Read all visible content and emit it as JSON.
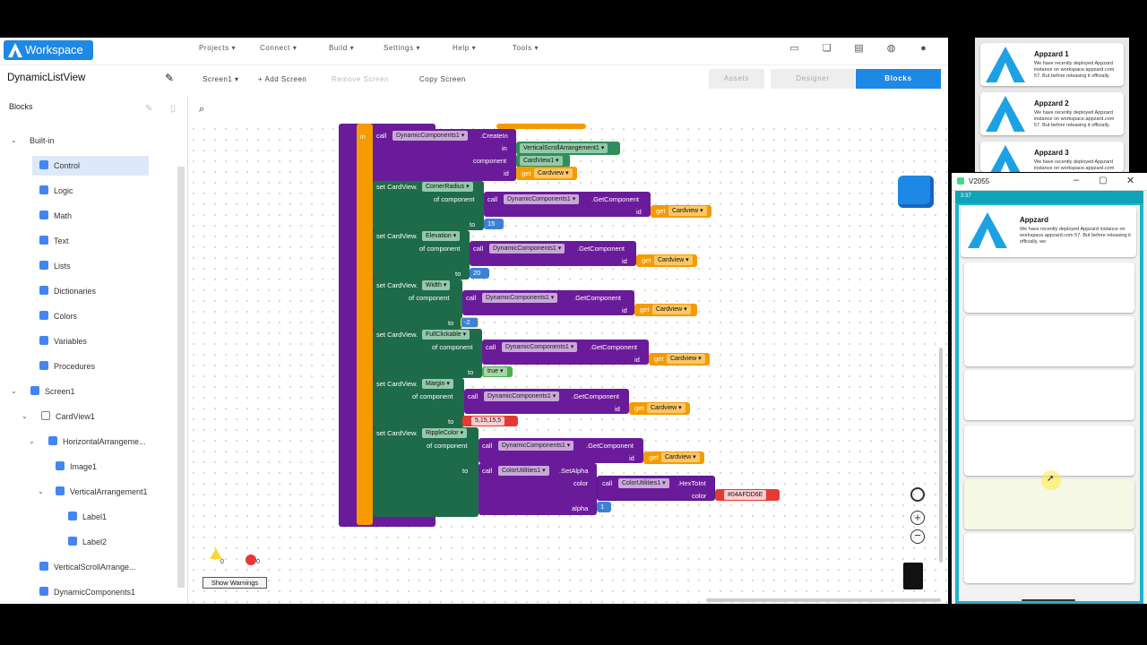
{
  "app": {
    "logo_text": "Workspace"
  },
  "menu": [
    "Projects ▾",
    "Connect ▾",
    "Build ▾",
    "Settings ▾",
    "Help ▾",
    "Tools ▾"
  ],
  "project": {
    "name": "DynamicListView"
  },
  "toolbar": {
    "screen_select": "Screen1 ▾",
    "add_screen": "+ Add Screen",
    "remove_screen": "Remove Screen",
    "copy_screen": "Copy Screen"
  },
  "tabs": {
    "assets": "Assets",
    "designer": "Designer",
    "blocks": "Blocks"
  },
  "blocks_panel": {
    "header": "Blocks"
  },
  "tree": {
    "builtin": "Built-in",
    "control": "Control",
    "logic": "Logic",
    "math": "Math",
    "text": "Text",
    "lists": "Lists",
    "dictionaries": "Dictionaries",
    "colors": "Colors",
    "variables": "Variables",
    "procedures": "Procedures",
    "screen1": "Screen1",
    "cardview1": "CardView1",
    "horizontal": "HorizontalArrangeme...",
    "image1": "Image1",
    "vertical1": "VerticalArrangement1",
    "label1": "Label1",
    "label2": "Label2",
    "vscroll": "VerticalScrollArrange...",
    "dynamic": "DynamicComponents1"
  },
  "warnings": {
    "warn_count": "0",
    "error_count": "0",
    "button": "Show Warnings"
  },
  "blocks": {
    "in": "in",
    "call": "call",
    "create_comp": "DynamicComponents1 ▾",
    "create": ".CreateIn",
    "in_label": "in",
    "vsa": "VerticalScrollArrangement1 ▾",
    "component": "component",
    "cardview1": "CardView1 ▾",
    "id": "id",
    "get": "get",
    "cardview": "Cardview ▾",
    "set_cardview": "set CardView.",
    "of_component": "of component",
    "to": "to",
    "getcomp": ".GetComponent",
    "corner": "CornerRadius ▾",
    "corner_val": "15",
    "elevation": "Elevation ▾",
    "elevation_val": "20",
    "width": "Width ▾",
    "width_val": "-2",
    "fullclick": "FullClickable ▾",
    "true_val": "true ▾",
    "margin": "Margin ▾",
    "margin_val": "5,15,15,5",
    "ripple": "RippleColor ▾",
    "colorutil": "ColorUtilities1 ▾",
    "setalpha": ".SetAlpha",
    "color": "color",
    "hextoint": ".HexToInt",
    "hex_val": "#04AFDD6E",
    "alpha": "alpha",
    "alpha_val": "1"
  },
  "preview_top": {
    "cards": [
      {
        "title": "Appzard 1",
        "desc": "We have recently deployed Appzard instance on workspace.appzard.com 57. But before releasing it officially."
      },
      {
        "title": "Appzard 2",
        "desc": "We have recently deployed Appzard instance on workspace.appzard.com 57. But before releasing it officially."
      },
      {
        "title": "Appzard 3",
        "desc": "We have recently deployed Appzard instance on workspace.appzard.com"
      }
    ]
  },
  "device": {
    "window_title": "V2055",
    "time": "3:37",
    "card": {
      "title": "Appzard",
      "desc": "We have recently deployed Appzard instance on workspace.appzard.com 57. But before releasing it officially, we"
    }
  },
  "colors": {
    "accent": "#1e88e5",
    "control": "#f59b00",
    "component": "#6a1b9a",
    "setter": "#1e6b4a"
  }
}
